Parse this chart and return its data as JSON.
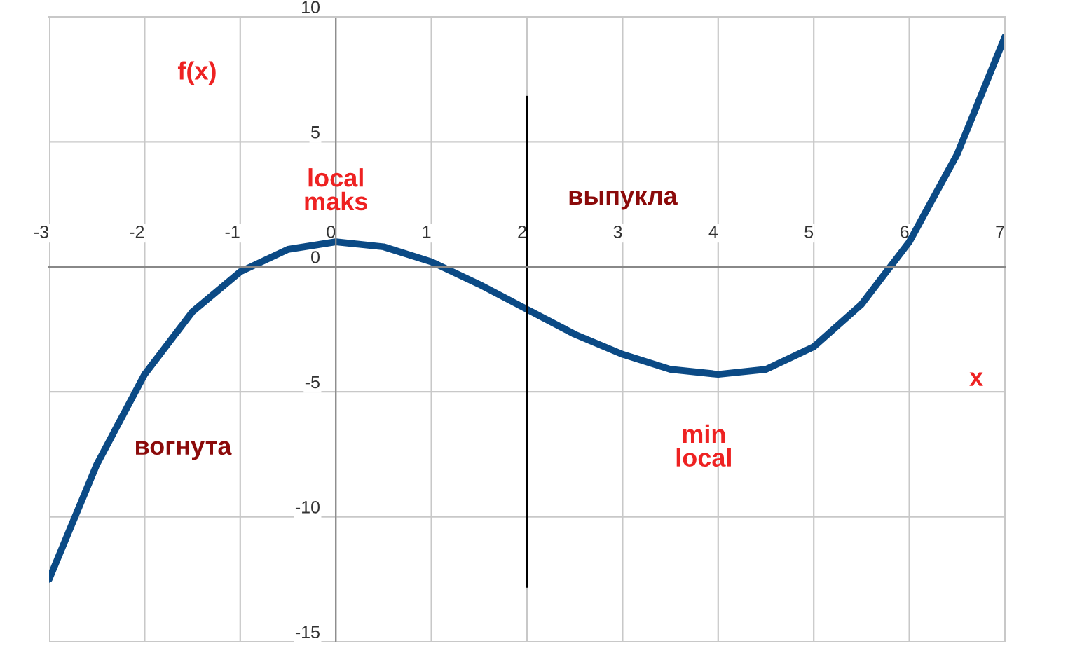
{
  "chart_data": {
    "type": "line",
    "xlabel": "x",
    "ylabel": "f(x)",
    "xlim": [
      -3,
      7
    ],
    "ylim": [
      -15,
      10
    ],
    "xticks": [
      -3,
      -2,
      -1,
      0,
      1,
      2,
      3,
      4,
      5,
      6,
      7
    ],
    "yticks": [
      -15,
      -10,
      -5,
      0,
      5,
      10
    ],
    "grid": true,
    "marker": "none",
    "line_style": "solid",
    "series": [
      {
        "color": "#0b4a85",
        "x": [
          -3,
          -2.5,
          -2,
          -1.5,
          -1,
          -0.5,
          0,
          0.5,
          1,
          1.5,
          2,
          2.5,
          3,
          3.5,
          4,
          4.5,
          5,
          5.5,
          6,
          6.5,
          7
        ],
        "values": [
          -12.5,
          -7.9,
          -4.3,
          -1.8,
          -0.2,
          0.7,
          1,
          0.8,
          0.2,
          -0.7,
          -1.7,
          -2.7,
          -3.5,
          -4.1,
          -4.3,
          -4.1,
          -3.2,
          -1.5,
          1,
          4.5,
          9.2
        ]
      },
      {
        "type": "line",
        "color": "#000000",
        "x": [
          2,
          2
        ],
        "values": [
          -12.8,
          6.8
        ]
      }
    ],
    "annotations": [
      "local\nmaks",
      "выпукла",
      "вогнута",
      "min\nlocal"
    ]
  }
}
